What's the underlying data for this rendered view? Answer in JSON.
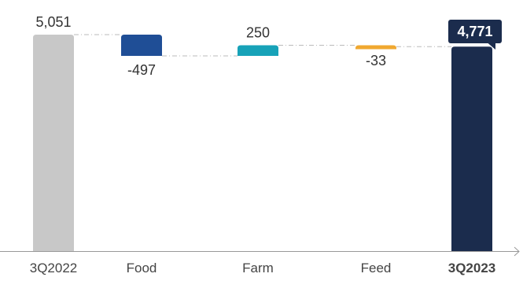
{
  "chart_data": {
    "type": "bar",
    "subtype": "waterfall",
    "categories": [
      "3Q2022",
      "Food",
      "Farm",
      "Feed",
      "3Q2023"
    ],
    "values": [
      5051,
      -497,
      250,
      -33,
      4771
    ],
    "value_labels": [
      "5,051",
      "-497",
      "250",
      "-33",
      "4,771"
    ],
    "bar_kinds": [
      "total",
      "delta",
      "delta",
      "delta",
      "total"
    ],
    "colors": [
      "#c8c8c8",
      "#1f4e96",
      "#17a2b8",
      "#f0a830",
      "#1b2c4d"
    ],
    "emphasized_category": "3Q2023",
    "callout_fill": "#1b2c4d",
    "connector_color": "#bbbbbb",
    "axis_color": "#999999",
    "ylim": [
      0,
      5051
    ],
    "grid": false,
    "legend": "none",
    "title": "",
    "xlabel": "",
    "ylabel": ""
  }
}
